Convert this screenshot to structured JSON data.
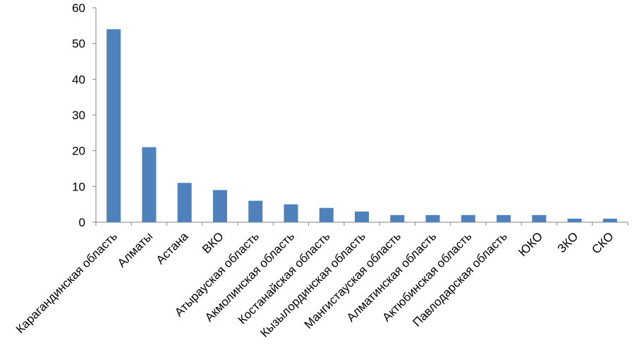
{
  "chart_data": {
    "type": "bar",
    "title": "",
    "xlabel": "",
    "ylabel": "",
    "ylim": [
      0,
      60
    ],
    "yticks": [
      0,
      10,
      20,
      30,
      40,
      50,
      60
    ],
    "grid": false,
    "legend": "none",
    "bar_color": "#4F81BD",
    "categories": [
      "Карагандинская  область",
      "Алматы",
      "Астана",
      "ВКО",
      "Атырауская  область",
      "Акмолинская  область",
      "Костанайская  область",
      "Кызылординская  область",
      "Мангистауская  область",
      "Алматинская  область",
      "Актюбинская  область",
      "Павлодарская область",
      "ЮКО",
      "ЗКО",
      "СКО"
    ],
    "values": [
      54,
      21,
      11,
      9,
      6,
      5,
      4,
      3,
      2,
      2,
      2,
      2,
      2,
      1,
      1
    ]
  }
}
